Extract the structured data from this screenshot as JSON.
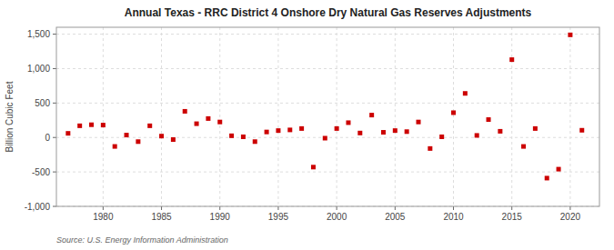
{
  "chart_data": {
    "type": "scatter",
    "title": "Annual Texas - RRC District 4 Onshore Dry Natural Gas Reserves Adjustments",
    "ylabel": "Billion Cubic Feet",
    "source": "Source: U.S. Energy Information Administration",
    "color": "#cc0000",
    "marker": "square",
    "grid": true,
    "xlim": [
      1976,
      2022.5
    ],
    "ylim": [
      -1000,
      1600
    ],
    "xticks": [
      1980,
      1985,
      1990,
      1995,
      2000,
      2005,
      2010,
      2015,
      2020
    ],
    "yticks": [
      {
        "value": -1000,
        "label": "-1,000"
      },
      -500,
      0,
      500,
      {
        "value": 1000,
        "label": "1,000"
      },
      {
        "value": 1500,
        "label": "1,500"
      }
    ],
    "x": [
      1977,
      1978,
      1979,
      1980,
      1981,
      1982,
      1983,
      1984,
      1985,
      1986,
      1987,
      1988,
      1989,
      1990,
      1991,
      1992,
      1993,
      1994,
      1995,
      1996,
      1997,
      1998,
      1999,
      2000,
      2001,
      2002,
      2003,
      2004,
      2005,
      2006,
      2007,
      2008,
      2009,
      2010,
      2011,
      2012,
      2013,
      2014,
      2015,
      2016,
      2017,
      2018,
      2019,
      2020,
      2021
    ],
    "values": [
      60,
      170,
      185,
      180,
      -130,
      35,
      -60,
      170,
      20,
      -30,
      380,
      200,
      275,
      225,
      25,
      10,
      -60,
      80,
      100,
      110,
      130,
      -430,
      -10,
      130,
      215,
      65,
      325,
      75,
      100,
      85,
      225,
      -160,
      10,
      360,
      640,
      30,
      260,
      90,
      1130,
      -130,
      130,
      -590,
      -460,
      1490,
      105
    ]
  }
}
